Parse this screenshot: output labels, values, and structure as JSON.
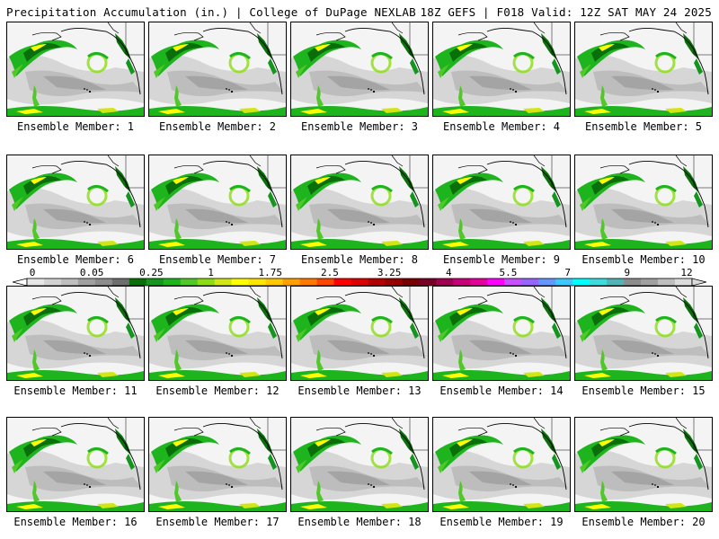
{
  "header": {
    "title_left": "Precipitation Accumulation (in.) | College of DuPage NEXLAB",
    "title_right": "18Z GEFS | F018 Valid: 12Z SAT MAY 24 2025"
  },
  "panels": [
    {
      "label": "Ensemble Member: 1"
    },
    {
      "label": "Ensemble Member: 2"
    },
    {
      "label": "Ensemble Member: 3"
    },
    {
      "label": "Ensemble Member: 4"
    },
    {
      "label": "Ensemble Member: 5"
    },
    {
      "label": "Ensemble Member: 6"
    },
    {
      "label": "Ensemble Member: 7"
    },
    {
      "label": "Ensemble Member: 8"
    },
    {
      "label": "Ensemble Member: 9"
    },
    {
      "label": "Ensemble Member: 10"
    },
    {
      "label": "Ensemble Member: 11"
    },
    {
      "label": "Ensemble Member: 12"
    },
    {
      "label": "Ensemble Member: 13"
    },
    {
      "label": "Ensemble Member: 14"
    },
    {
      "label": "Ensemble Member: 15"
    },
    {
      "label": "Ensemble Member: 16"
    },
    {
      "label": "Ensemble Member: 17"
    },
    {
      "label": "Ensemble Member: 18"
    },
    {
      "label": "Ensemble Member: 19"
    },
    {
      "label": "Ensemble Member: 20"
    }
  ],
  "colorbar": {
    "tick_labels": [
      "0",
      "0.05",
      "0.25",
      "1",
      "1.75",
      "2.5",
      "3.25",
      "4",
      "5.5",
      "7",
      "9",
      "12"
    ],
    "colors": [
      "#e6e6e6",
      "#d2d2d2",
      "#bebebe",
      "#a0a0a0",
      "#8c8c8c",
      "#6e6e6e",
      "#0a6e0a",
      "#14961e",
      "#1eb41e",
      "#50c828",
      "#8cdc14",
      "#d2e614",
      "#ffff00",
      "#ffe600",
      "#ffc800",
      "#ffa000",
      "#ff7800",
      "#ff4600",
      "#ff0000",
      "#dc0000",
      "#b40000",
      "#960000",
      "#780000",
      "#780028",
      "#a00050",
      "#c80078",
      "#e6009b",
      "#ff00ff",
      "#c850ff",
      "#9664ff",
      "#6496ff",
      "#3cc8ff",
      "#00ffff",
      "#3cdcdc",
      "#50b4b4",
      "#8c8c8c",
      "#a0a0a0",
      "#bebebe",
      "#dcdcdc"
    ]
  }
}
